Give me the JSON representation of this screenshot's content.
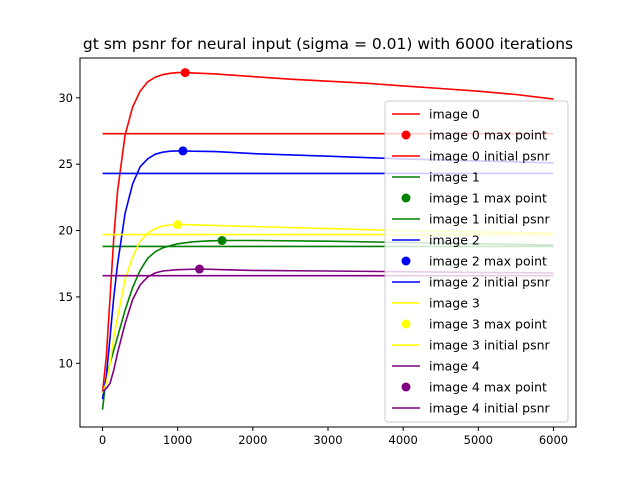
{
  "chart_data": {
    "type": "line",
    "title": "gt sm psnr for neural input (sigma = 0.01) with 6000 iterations",
    "xlabel": "",
    "ylabel": "",
    "xlim": [
      -300,
      6300
    ],
    "ylim": [
      5.2,
      33.0
    ],
    "xticks": [
      0,
      1000,
      2000,
      3000,
      4000,
      5000,
      6000
    ],
    "yticks": [
      10,
      15,
      20,
      25,
      30
    ],
    "grid": false,
    "legend_position": "right",
    "series": [
      {
        "name": "image 0",
        "color": "#ff0000",
        "x": [
          0,
          50,
          100,
          150,
          200,
          300,
          400,
          500,
          600,
          700,
          800,
          900,
          1000,
          1100,
          1200,
          1500,
          2000,
          2500,
          3000,
          3500,
          4000,
          4500,
          5000,
          5500,
          6000
        ],
        "values": [
          7.8,
          10.5,
          15.0,
          19.5,
          23.0,
          27.2,
          29.3,
          30.5,
          31.2,
          31.55,
          31.75,
          31.85,
          31.9,
          31.9,
          31.88,
          31.8,
          31.6,
          31.4,
          31.25,
          31.1,
          30.9,
          30.7,
          30.5,
          30.25,
          29.9
        ],
        "max_point": {
          "name": "image 0 max point",
          "x": 1100,
          "y": 31.9
        },
        "initial": {
          "name": "image 0 initial psnr",
          "y": 27.3
        }
      },
      {
        "name": "image 1",
        "color": "#008000",
        "x": [
          0,
          50,
          100,
          150,
          200,
          300,
          400,
          500,
          600,
          700,
          800,
          1000,
          1200,
          1400,
          1600,
          2000,
          3000,
          4000,
          5000,
          6000
        ],
        "values": [
          6.5,
          9.0,
          10.0,
          11.0,
          12.0,
          14.0,
          15.7,
          17.0,
          17.9,
          18.4,
          18.7,
          19.0,
          19.15,
          19.22,
          19.25,
          19.25,
          19.2,
          19.1,
          19.0,
          18.9
        ],
        "max_point": {
          "name": "image 1 max point",
          "x": 1590,
          "y": 19.25
        },
        "initial": {
          "name": "image 1 initial psnr",
          "y": 18.8
        }
      },
      {
        "name": "image 2",
        "color": "#0000ff",
        "x": [
          0,
          50,
          100,
          150,
          200,
          300,
          400,
          500,
          600,
          700,
          800,
          900,
          1000,
          1100,
          1200,
          1500,
          2000,
          3000,
          4000,
          5000,
          6000
        ],
        "values": [
          7.3,
          9.0,
          12.0,
          15.0,
          17.5,
          21.3,
          23.5,
          24.8,
          25.4,
          25.75,
          25.9,
          25.98,
          26.0,
          26.0,
          25.98,
          25.95,
          25.8,
          25.6,
          25.4,
          25.25,
          25.1
        ],
        "max_point": {
          "name": "image 2 max point",
          "x": 1070,
          "y": 26.0
        },
        "initial": {
          "name": "image 2 initial psnr",
          "y": 24.3
        }
      },
      {
        "name": "image 3",
        "color": "#ffff00",
        "x": [
          0,
          50,
          100,
          150,
          200,
          300,
          400,
          500,
          600,
          700,
          800,
          900,
          1000,
          1200,
          1500,
          2000,
          3000,
          4000,
          5000,
          6000
        ],
        "values": [
          7.8,
          8.5,
          10.0,
          12.0,
          13.5,
          16.3,
          18.0,
          19.2,
          19.8,
          20.15,
          20.35,
          20.42,
          20.45,
          20.43,
          20.38,
          20.3,
          20.15,
          20.0,
          19.9,
          19.8
        ],
        "max_point": {
          "name": "image 3 max point",
          "x": 1000,
          "y": 20.45
        },
        "initial": {
          "name": "image 3 initial psnr",
          "y": 19.7
        }
      },
      {
        "name": "image 4",
        "color": "#800080",
        "x": [
          0,
          50,
          100,
          150,
          200,
          300,
          400,
          500,
          600,
          700,
          800,
          1000,
          1300,
          1600,
          2000,
          3000,
          4000,
          5000,
          6000
        ],
        "values": [
          7.9,
          8.1,
          8.5,
          9.5,
          10.8,
          13.0,
          14.8,
          15.9,
          16.5,
          16.8,
          16.95,
          17.05,
          17.1,
          17.05,
          17.0,
          16.95,
          16.9,
          16.85,
          16.8
        ],
        "max_point": {
          "name": "image 4 max point",
          "x": 1290,
          "y": 17.1
        },
        "initial": {
          "name": "image 4 initial psnr",
          "y": 16.6
        }
      }
    ]
  }
}
